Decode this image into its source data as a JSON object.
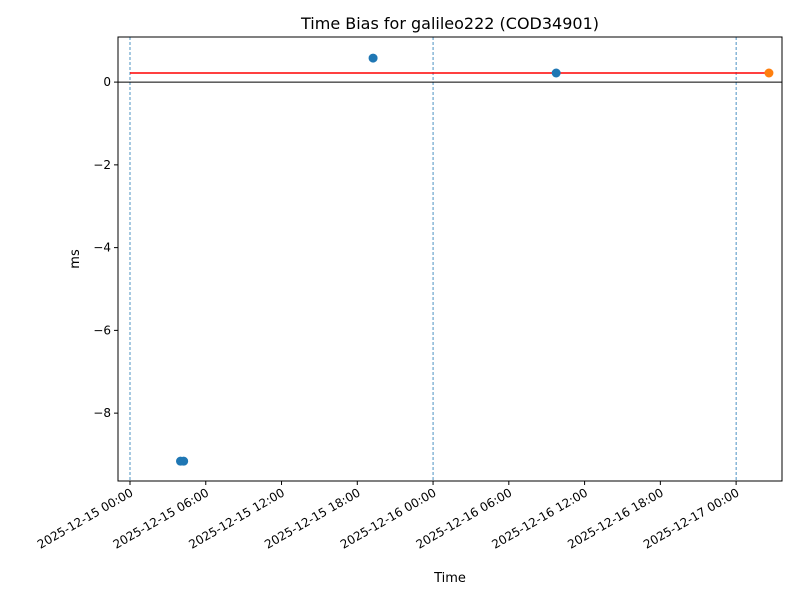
{
  "chart_data": {
    "type": "scatter",
    "title": "Time Bias for galileo222 (COD34901)",
    "xlabel": "Time",
    "ylabel": "ms",
    "xlim": [
      "2025-12-14 23:03",
      "2025-12-17 03:38"
    ],
    "ylim": [
      -9.64,
      1.09
    ],
    "x_ticks": [
      "2025-12-15 00:00",
      "2025-12-15 06:00",
      "2025-12-15 12:00",
      "2025-12-15 18:00",
      "2025-12-16 00:00",
      "2025-12-16 06:00",
      "2025-12-16 12:00",
      "2025-12-16 18:00",
      "2025-12-17 00:00"
    ],
    "y_ticks": [
      0,
      -2,
      -4,
      -6,
      -8
    ],
    "y_tick_labels": [
      "0",
      "−2",
      "−4",
      "−6",
      "−8"
    ],
    "grid": false,
    "series": [
      {
        "color": "#1f77b4",
        "points": [
          {
            "x": "2025-12-15 04:00",
            "y": -9.16
          },
          {
            "x": "2025-12-15 04:15",
            "y": -9.16
          },
          {
            "x": "2025-12-15 19:15",
            "y": 0.58
          },
          {
            "x": "2025-12-16 09:45",
            "y": 0.22
          }
        ]
      },
      {
        "color": "#ff7f0e",
        "points": [
          {
            "x": "2025-12-17 02:36",
            "y": 0.22
          }
        ]
      }
    ],
    "mean_line": {
      "y": 0.22,
      "x_start": "2025-12-15 00:00",
      "x_end": "2025-12-17 02:36",
      "color": "#ff0000"
    },
    "zero_line": {
      "y": 0,
      "color": "#000000"
    },
    "day_lines": {
      "x": [
        "2025-12-15 00:00",
        "2025-12-16 00:00",
        "2025-12-17 00:00"
      ],
      "color": "#1f77b4"
    }
  }
}
